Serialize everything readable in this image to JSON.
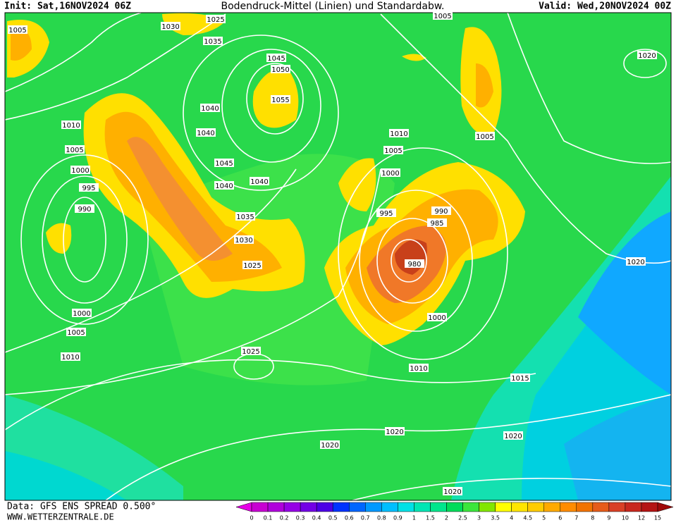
{
  "header": {
    "init": "Init: Sat,16NOV2024 06Z",
    "title": "Bodendruck-Mittel (Linien) und Standardabw.",
    "valid": "Valid: Wed,20NOV2024 00Z"
  },
  "isobar_labels": [
    1005,
    1030,
    1025,
    1035,
    1005,
    1020,
    1045,
    1050,
    1055,
    1040,
    1010,
    1040,
    1010,
    1005,
    1005,
    1005,
    1045,
    1000,
    1000,
    1040,
    1040,
    995,
    990,
    995,
    990,
    1035,
    985,
    1030,
    1025,
    980,
    1020,
    1000,
    1000,
    1005,
    1010,
    1025,
    1010,
    1015,
    1020,
    1020,
    1020,
    1020
  ],
  "footer": {
    "source": "Data: GFS ENS SPREAD 0.500°",
    "site": "WWW.WETTERZENTRALE.DE"
  },
  "colorbar": {
    "labels": [
      0,
      0.1,
      0.2,
      0.3,
      0.4,
      0.5,
      0.6,
      0.7,
      0.8,
      0.9,
      1,
      1.5,
      2,
      2.5,
      3,
      3.5,
      4,
      4.5,
      5,
      6,
      7,
      8,
      9,
      10,
      12,
      15
    ],
    "colors": [
      "#e600e6",
      "#c800d2",
      "#b000dc",
      "#9600e6",
      "#7300e6",
      "#4d00e6",
      "#0033ff",
      "#0066ff",
      "#0099ff",
      "#00bfff",
      "#00e1e6",
      "#00e6b4",
      "#00e68c",
      "#00dc5a",
      "#3ce63c",
      "#82e600",
      "#ffff00",
      "#ffe600",
      "#ffcc00",
      "#ffaa00",
      "#ff8c00",
      "#f27300",
      "#e65c1a",
      "#d94026",
      "#c8281e",
      "#b41414",
      "#a00a0a"
    ]
  }
}
